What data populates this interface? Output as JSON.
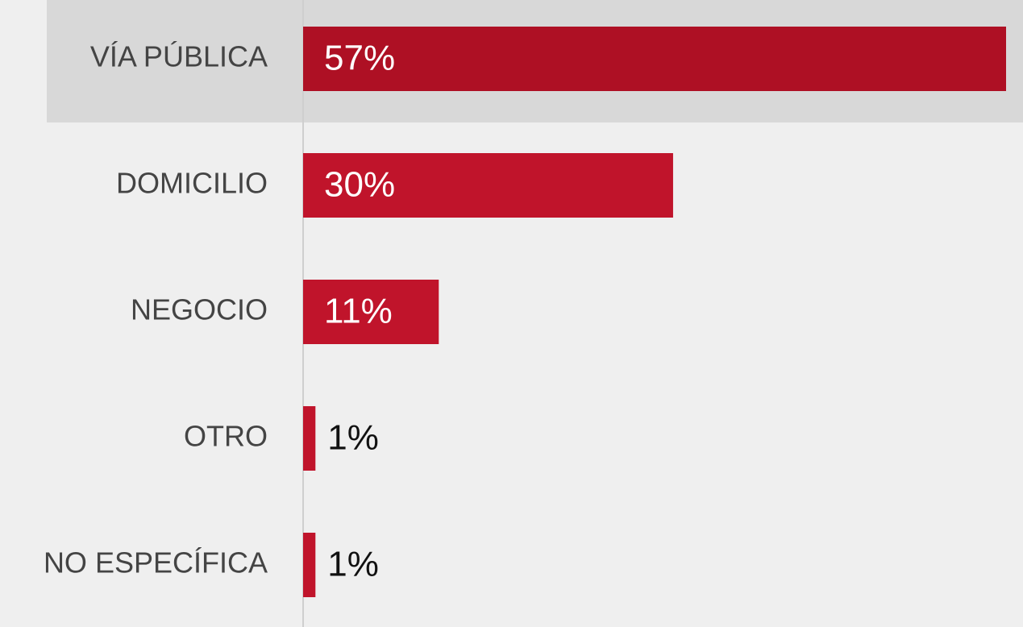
{
  "chart_data": {
    "type": "bar",
    "orientation": "horizontal",
    "categories": [
      "VÍA PÚBLICA",
      "DOMICILIO",
      "NEGOCIO",
      "OTRO",
      "NO ESPECÍFICA"
    ],
    "values": [
      57,
      30,
      11,
      1,
      1
    ],
    "value_labels": [
      "57%",
      "30%",
      "11%",
      "1%",
      "1%"
    ],
    "color": "#c0142b"
  }
}
